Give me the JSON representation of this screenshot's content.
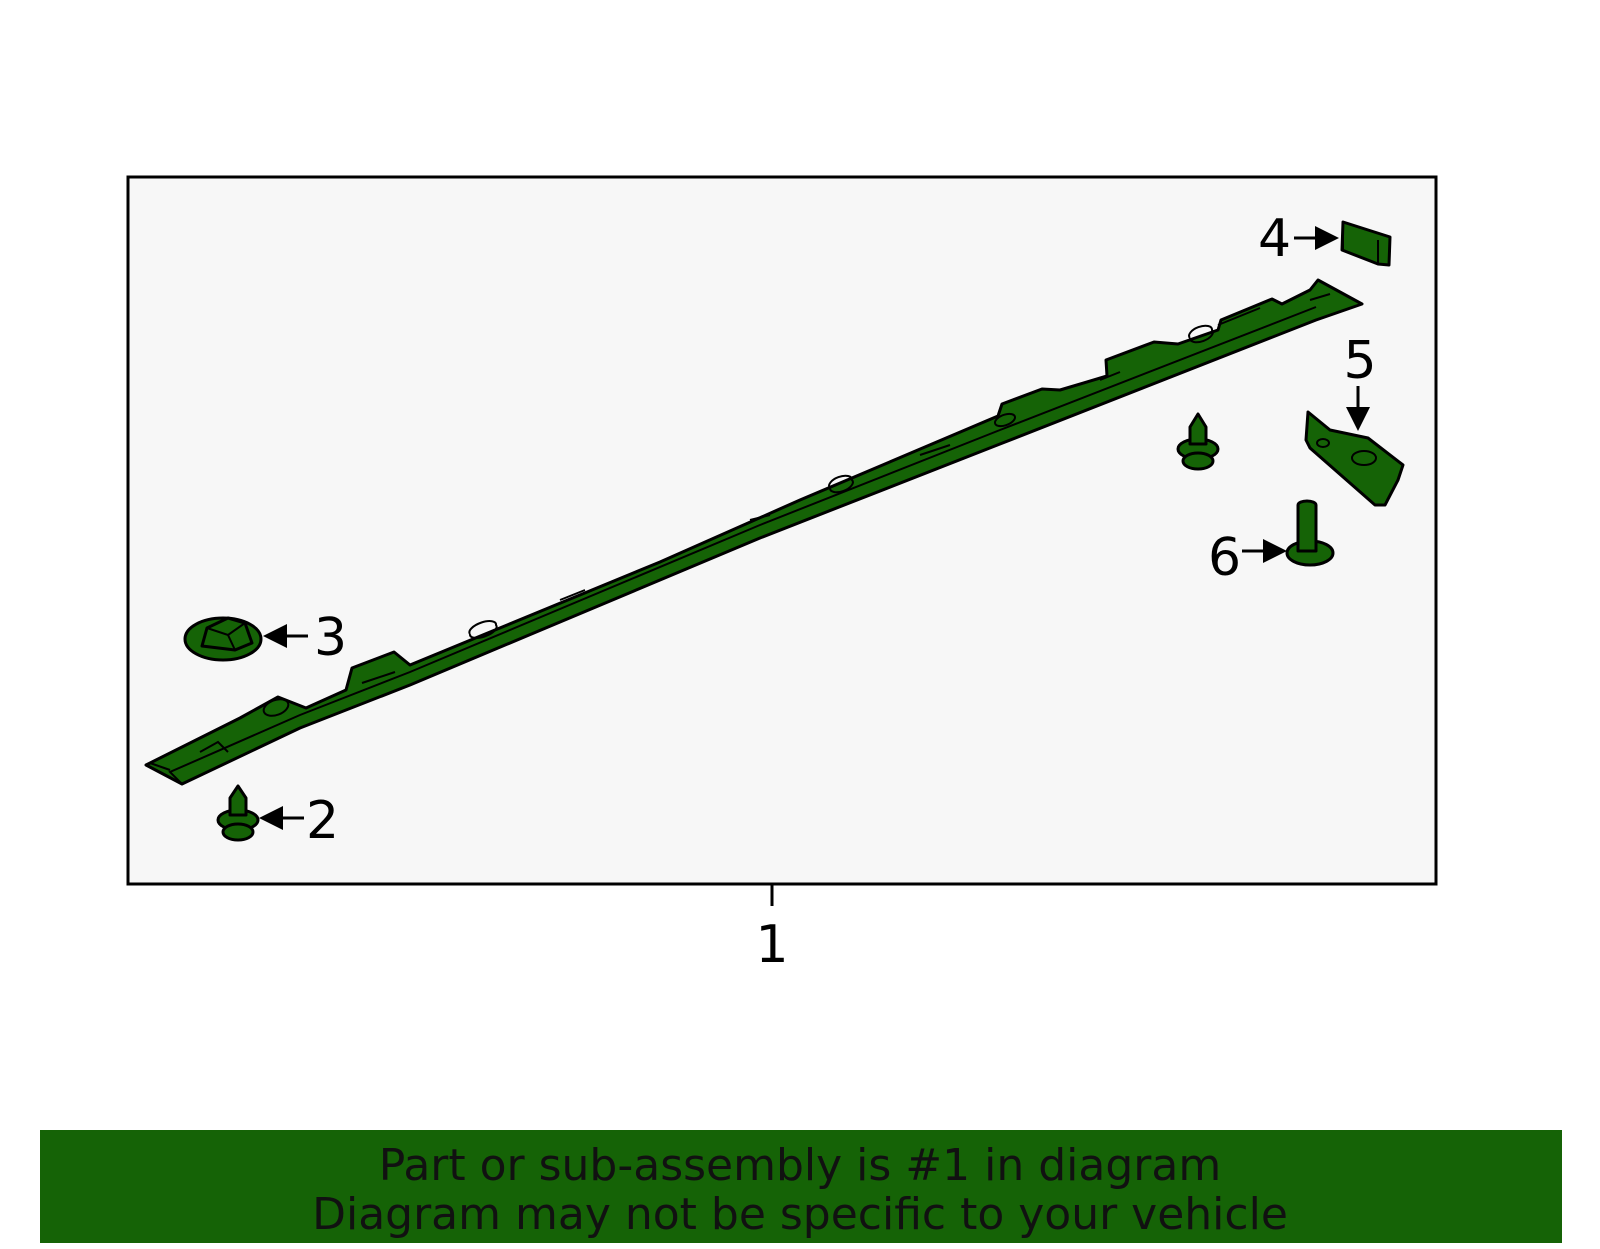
{
  "diagram": {
    "callouts": [
      {
        "label": "1"
      },
      {
        "label": "2"
      },
      {
        "label": "3"
      },
      {
        "label": "4"
      },
      {
        "label": "5"
      },
      {
        "label": "6"
      }
    ]
  },
  "banner": {
    "lines": [
      "Part or sub-assembly is #1 in diagram",
      "Diagram may not be specific to your vehicle"
    ]
  }
}
